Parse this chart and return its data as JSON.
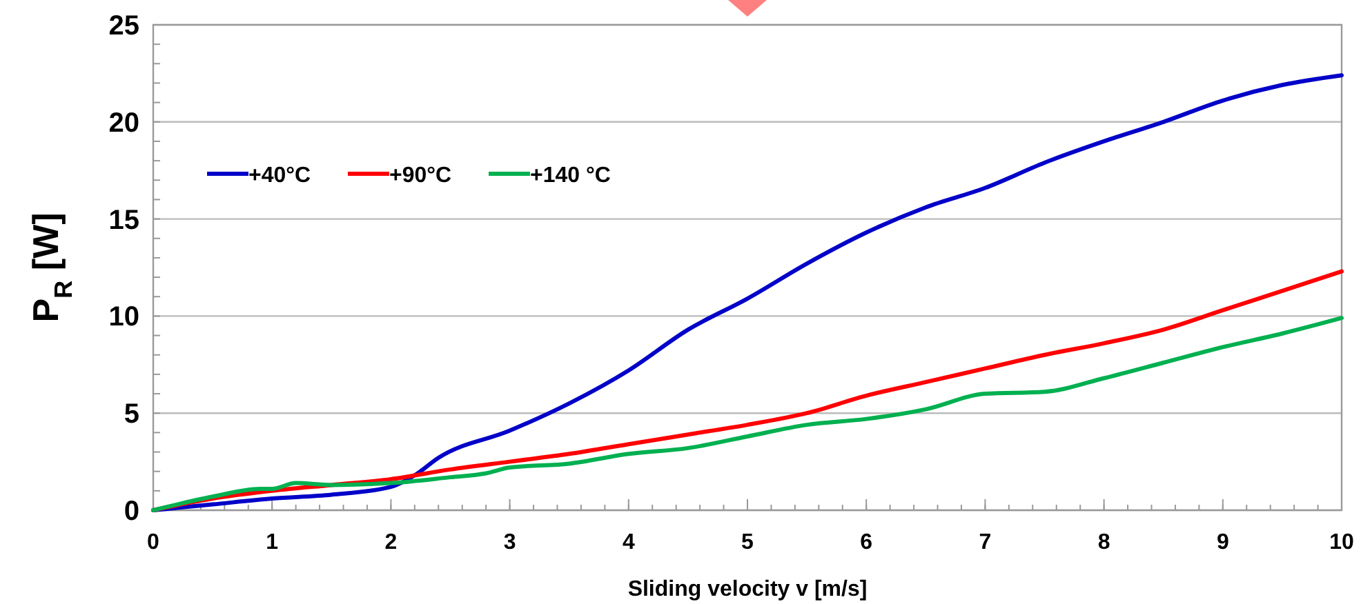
{
  "chart_data": {
    "type": "line",
    "xlabel": "Sliding velocity v [m/s]",
    "ylabel": "P$_{R}$ [W]",
    "xlim": [
      0,
      10
    ],
    "ylim": [
      0,
      25
    ],
    "xticks": [
      0,
      1,
      2,
      3,
      4,
      5,
      6,
      7,
      8,
      9,
      10
    ],
    "yticks": [
      0,
      5,
      10,
      15,
      20,
      25
    ],
    "grid": "y",
    "legend": "top left",
    "line_style": "solid",
    "marker": "none",
    "series": [
      {
        "name": "+40°C",
        "color": "#0000c8",
        "x": [
          0,
          0.5,
          1,
          1.5,
          2,
          2.2,
          2.4,
          3,
          3.5,
          4,
          4.5,
          5,
          5.5,
          6,
          6.5,
          7,
          7.5,
          8,
          8.5,
          9,
          9.5,
          10
        ],
        "values": [
          0,
          0.3,
          0.6,
          0.8,
          1.2,
          1.8,
          2.7,
          4.1,
          5.5,
          7.2,
          9.3,
          10.9,
          12.7,
          14.3,
          15.6,
          16.6,
          17.9,
          19.0,
          20.0,
          21.1,
          21.9,
          22.4
        ]
      },
      {
        "name": "+90°C",
        "color": "#ff0000",
        "x": [
          0,
          0.5,
          1,
          1.5,
          2,
          2.5,
          3,
          3.5,
          4,
          4.5,
          5,
          5.5,
          6,
          6.5,
          7,
          7.5,
          8,
          8.5,
          9,
          9.5,
          10
        ],
        "values": [
          0,
          0.6,
          1.0,
          1.3,
          1.6,
          2.1,
          2.5,
          2.9,
          3.4,
          3.9,
          4.4,
          5.0,
          5.9,
          6.6,
          7.3,
          8.0,
          8.6,
          9.3,
          10.3,
          11.3,
          12.3
        ]
      },
      {
        "name": "+140 °C",
        "color": "#00b050",
        "x": [
          0,
          0.5,
          0.9,
          1,
          1.2,
          1.5,
          2,
          2.5,
          2.8,
          3,
          3.5,
          4,
          4.5,
          5,
          5.5,
          6,
          6.5,
          7,
          7.5,
          8,
          8.5,
          9,
          9.5,
          10
        ],
        "values": [
          0,
          0.7,
          1.1,
          1.1,
          1.4,
          1.3,
          1.4,
          1.7,
          1.9,
          2.2,
          2.4,
          2.9,
          3.2,
          3.8,
          4.4,
          4.7,
          5.2,
          6.0,
          6.1,
          6.8,
          7.6,
          8.4,
          9.1,
          9.9
        ]
      }
    ]
  }
}
